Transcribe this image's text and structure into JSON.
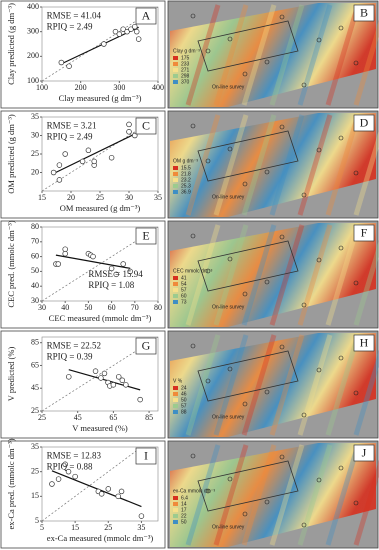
{
  "chart_data": [
    {
      "type": "scatter",
      "x_label": "Clay measured (g dm⁻³)",
      "y_label": "Clay predicted (g dm⁻³)",
      "rmse": "RMSE = 41.04",
      "rpiq": "RPIQ = 2.49",
      "panel": "A",
      "x": [
        150,
        170,
        260,
        290,
        300,
        310,
        320,
        330,
        345,
        350,
        340
      ],
      "values": [
        175,
        160,
        250,
        300,
        290,
        310,
        300,
        310,
        300,
        270,
        320
      ],
      "xlim": [
        100,
        400
      ],
      "ylim": [
        100,
        400
      ],
      "xticks": [
        100,
        200,
        300,
        400
      ],
      "yticks": [
        100,
        200,
        300,
        400
      ]
    },
    {
      "type": "scatter",
      "x_label": "OM measured (g dm⁻³)",
      "y_label": "OM predicted (g dm⁻³)",
      "rmse": "RMSE = 3.21",
      "rpiq": "RPIQ = 2.49",
      "panel": "C",
      "x": [
        17,
        18,
        18,
        19,
        22,
        23,
        24,
        24,
        27,
        30,
        30,
        31
      ],
      "values": [
        20,
        18,
        22,
        25,
        23,
        26,
        22,
        23,
        24,
        31,
        33,
        30
      ],
      "xlim": [
        15,
        35
      ],
      "ylim": [
        15,
        35
      ],
      "xticks": [
        15,
        20,
        25,
        30,
        35
      ],
      "yticks": [
        20,
        25,
        30,
        35
      ]
    },
    {
      "type": "scatter",
      "x_label": "CEC measured (mmolc dm⁻³)",
      "y_label": "CEC pred. (mmolc dm⁻³)",
      "rmse": "RMSE = 15.94",
      "rpiq": "RPIQ = 1.08",
      "panel": "E",
      "x": [
        36,
        37,
        40,
        40,
        50,
        51,
        52,
        60,
        62,
        65,
        68
      ],
      "values": [
        55,
        55,
        65,
        62,
        62,
        61,
        60,
        52,
        48,
        55,
        50
      ],
      "xlim": [
        30,
        80
      ],
      "ylim": [
        30,
        80
      ],
      "xticks": [
        30,
        40,
        50,
        60,
        70,
        80
      ],
      "yticks": [
        30,
        40,
        50,
        60,
        70,
        80
      ]
    },
    {
      "type": "scatter",
      "x_label": "V measured  (%)",
      "y_label": "V predicted  (%)",
      "rmse": "RMSE = 22.52",
      "rpiq": "RPIQ = 0.39",
      "panel": "G",
      "x": [
        40,
        55,
        58,
        60,
        62,
        63,
        65,
        68,
        70,
        72,
        80
      ],
      "values": [
        55,
        60,
        54,
        58,
        50,
        47,
        48,
        55,
        52,
        48,
        35
      ],
      "xlim": [
        25,
        90
      ],
      "ylim": [
        25,
        90
      ],
      "xticks": [
        25,
        45,
        65,
        85
      ],
      "yticks": [
        25,
        45,
        65,
        85
      ]
    },
    {
      "type": "scatter",
      "x_label": "ex-Ca measured (mmolc dm⁻³)",
      "y_label": "ex-Ca pred. (mmolc dm⁻³)",
      "rmse": "RMSE = 12.83",
      "rpiq": "RPIQ = 0.88",
      "panel": "I",
      "x": [
        8,
        10,
        12,
        13,
        15,
        22,
        23,
        25,
        28,
        29,
        35
      ],
      "values": [
        20,
        22,
        28,
        25,
        23,
        17,
        16,
        18,
        15,
        17,
        7
      ],
      "xlim": [
        5,
        40
      ],
      "ylim": [
        5,
        35
      ],
      "xticks": [
        5,
        15,
        25,
        35
      ],
      "yticks": [
        5,
        15,
        25,
        35
      ]
    }
  ],
  "maps": [
    {
      "panel": "B",
      "legend_title": "Clay g dm⁻³",
      "legend_values": [
        175,
        233,
        271,
        298,
        370
      ],
      "note": "On-line survey",
      "colors": [
        "#d7301f",
        "#f08a3a",
        "#f6e08a",
        "#9ccb8e",
        "#3f8fc4"
      ]
    },
    {
      "panel": "D",
      "legend_title": "OM g dm⁻³",
      "legend_values": [
        15.5,
        21.8,
        23.2,
        25.3,
        36.9
      ],
      "note": "On-line survey",
      "colors": [
        "#d7301f",
        "#f08a3a",
        "#f6e08a",
        "#9ccb8e",
        "#3f8fc4"
      ]
    },
    {
      "panel": "F",
      "legend_title": "CEC mmolc dm⁻³",
      "legend_values": [
        41,
        54,
        57,
        60,
        73
      ],
      "note": "On-line survey",
      "colors": [
        "#d7301f",
        "#f08a3a",
        "#f6e08a",
        "#9ccb8e",
        "#3f8fc4"
      ]
    },
    {
      "panel": "H",
      "legend_title": "V %",
      "legend_values": [
        24,
        46,
        50,
        57,
        88
      ],
      "note": "On-line survey",
      "colors": [
        "#d7301f",
        "#f08a3a",
        "#f6e08a",
        "#9ccb8e",
        "#3f8fc4"
      ]
    },
    {
      "panel": "J",
      "legend_title": "ex-Ca mmolc dm⁻³",
      "legend_values": [
        6.4,
        14,
        17,
        22,
        50
      ],
      "note": "On-line survey",
      "colors": [
        "#d7301f",
        "#f08a3a",
        "#f6e08a",
        "#9ccb8e",
        "#3f8fc4"
      ]
    }
  ]
}
